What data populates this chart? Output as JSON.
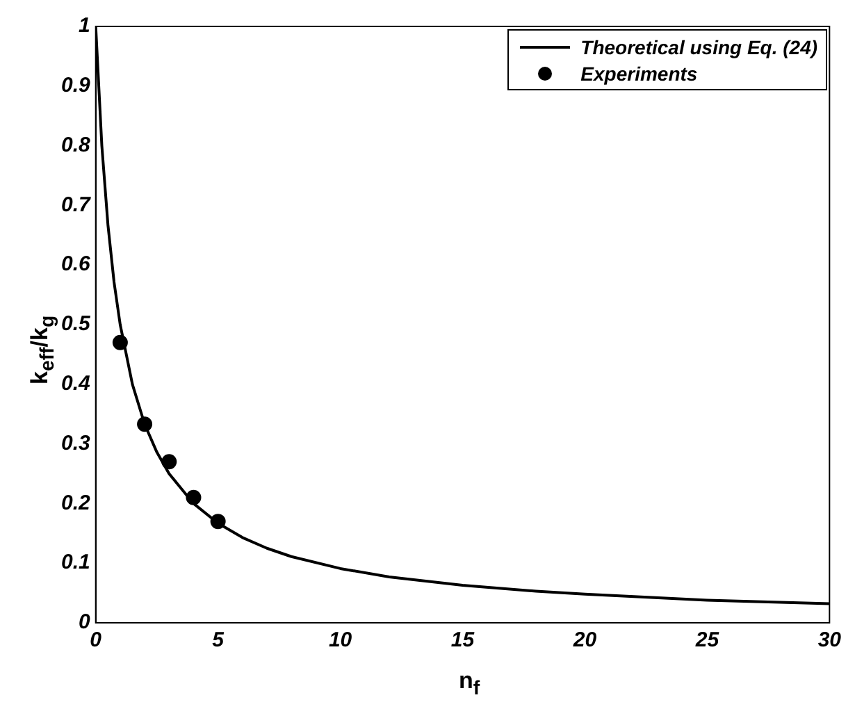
{
  "chart_data": {
    "type": "line",
    "xlabel": "n$_{f}$",
    "ylabel": "k$_{eff}$/k$_{g}$",
    "xlim": [
      0,
      30
    ],
    "ylim": [
      0,
      1
    ],
    "xticks": [
      0,
      5,
      10,
      15,
      20,
      25,
      30
    ],
    "yticks": [
      0,
      0.1,
      0.2,
      0.3,
      0.4,
      0.5,
      0.6,
      0.7,
      0.8,
      0.9,
      1
    ],
    "grid": false,
    "legend": "top right",
    "series": [
      {
        "name": "Theoretical using Eq. (24)",
        "color": "#000000",
        "line_style": "solid",
        "marker": "none",
        "x": [
          0,
          0.25,
          0.5,
          0.75,
          1,
          1.5,
          2,
          2.5,
          3,
          4,
          5,
          6,
          7,
          8,
          10,
          12,
          15,
          18,
          20,
          25,
          30
        ],
        "values": [
          1,
          0.8,
          0.667,
          0.571,
          0.5,
          0.4,
          0.333,
          0.286,
          0.25,
          0.2,
          0.167,
          0.143,
          0.125,
          0.111,
          0.091,
          0.077,
          0.063,
          0.053,
          0.048,
          0.038,
          0.032
        ]
      },
      {
        "name": "Experiments",
        "type": "scatter",
        "color": "#000000",
        "marker": "circle",
        "x": [
          1,
          2,
          3,
          4,
          5
        ],
        "values": [
          0.47,
          0.333,
          0.27,
          0.21,
          0.17
        ]
      }
    ]
  }
}
